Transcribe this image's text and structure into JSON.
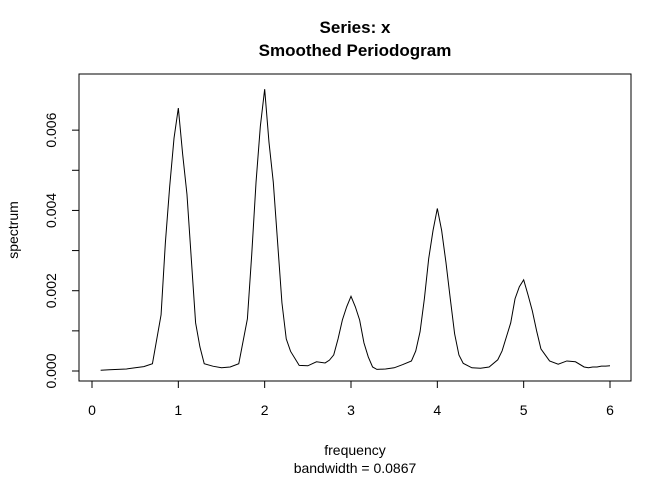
{
  "chart_data": {
    "type": "line",
    "title": "Series: x",
    "subtitle": "Smoothed Periodogram",
    "xlabel": "frequency",
    "xlabel_sub": "bandwidth = 0.0867",
    "ylabel": "spectrum",
    "xlim": [
      0.0,
      6.0
    ],
    "ylim": [
      0.0,
      0.007
    ],
    "x_ticks": [
      0,
      1,
      2,
      3,
      4,
      5,
      6
    ],
    "x_tick_labels": [
      "0",
      "1",
      "2",
      "3",
      "4",
      "5",
      "6"
    ],
    "y_ticks": [
      0.0,
      0.001,
      0.002,
      0.003,
      0.004,
      0.005,
      0.006
    ],
    "y_tick_labels": [
      "0.000",
      "",
      "0.002",
      "",
      "0.004",
      "",
      "0.006"
    ],
    "grid": false,
    "series": [
      {
        "x": [
          0.1,
          0.2,
          0.3,
          0.4,
          0.5,
          0.6,
          0.7,
          0.8,
          0.85,
          0.9,
          0.95,
          1.0,
          1.05,
          1.1,
          1.15,
          1.2,
          1.25,
          1.3,
          1.4,
          1.5,
          1.6,
          1.7,
          1.8,
          1.85,
          1.9,
          1.95,
          2.0,
          2.05,
          2.1,
          2.15,
          2.2,
          2.25,
          2.3,
          2.4,
          2.5,
          2.6,
          2.7,
          2.75,
          2.8,
          2.85,
          2.9,
          2.95,
          3.0,
          3.05,
          3.1,
          3.15,
          3.2,
          3.25,
          3.3,
          3.4,
          3.5,
          3.6,
          3.7,
          3.75,
          3.8,
          3.85,
          3.9,
          3.95,
          4.0,
          4.05,
          4.1,
          4.15,
          4.2,
          4.25,
          4.3,
          4.4,
          4.5,
          4.6,
          4.7,
          4.75,
          4.8,
          4.85,
          4.9,
          4.95,
          5.0,
          5.05,
          5.1,
          5.15,
          5.2,
          5.25,
          5.3,
          5.4,
          5.5,
          5.6,
          5.7,
          5.75,
          5.8,
          5.85,
          5.9,
          5.95,
          6.0
        ],
        "values": [
          2e-05,
          3e-05,
          4e-05,
          5e-05,
          8e-05,
          0.00011,
          0.00018,
          0.0014,
          0.0032,
          0.0046,
          0.0058,
          0.00655,
          0.0054,
          0.0044,
          0.0028,
          0.0012,
          0.0006,
          0.00018,
          0.00012,
          8e-05,
          0.0001,
          0.00018,
          0.0013,
          0.0029,
          0.0047,
          0.0061,
          0.00702,
          0.0057,
          0.0047,
          0.0032,
          0.0017,
          0.0008,
          0.00049,
          0.00014,
          0.00013,
          0.00023,
          0.0002,
          0.00027,
          0.0004,
          0.0008,
          0.00127,
          0.0016,
          0.00186,
          0.0016,
          0.00127,
          0.0007,
          0.00035,
          0.0001,
          4e-05,
          5e-05,
          8e-05,
          0.00016,
          0.00025,
          0.0005,
          0.00098,
          0.0018,
          0.0028,
          0.0035,
          0.00405,
          0.0035,
          0.0027,
          0.0018,
          0.00093,
          0.0004,
          0.00019,
          8e-05,
          7e-05,
          0.0001,
          0.00028,
          0.0005,
          0.00085,
          0.0012,
          0.0018,
          0.0021,
          0.00227,
          0.0019,
          0.0015,
          0.001,
          0.00055,
          0.0004,
          0.00025,
          0.00017,
          0.00025,
          0.00023,
          0.0001,
          8e-05,
          0.0001,
          0.0001,
          0.00012,
          0.00012,
          0.00013
        ]
      }
    ]
  }
}
